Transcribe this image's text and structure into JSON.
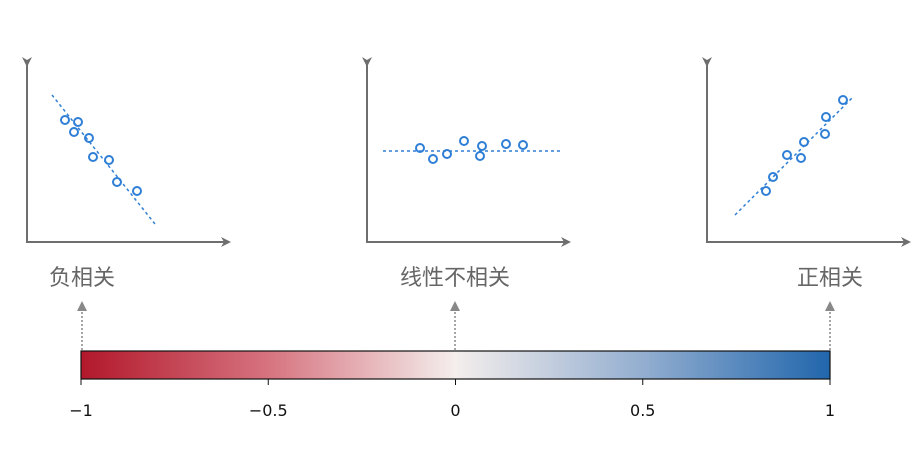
{
  "panels": [
    {
      "label": "负相关"
    },
    {
      "label": "线性不相关"
    },
    {
      "label": "正相关"
    }
  ],
  "colorbar": {
    "range": [
      -1,
      1
    ],
    "ticks": [
      {
        "value": -1,
        "label": "−1"
      },
      {
        "value": -0.5,
        "label": "−0.5"
      },
      0,
      0.5,
      1
    ]
  }
}
